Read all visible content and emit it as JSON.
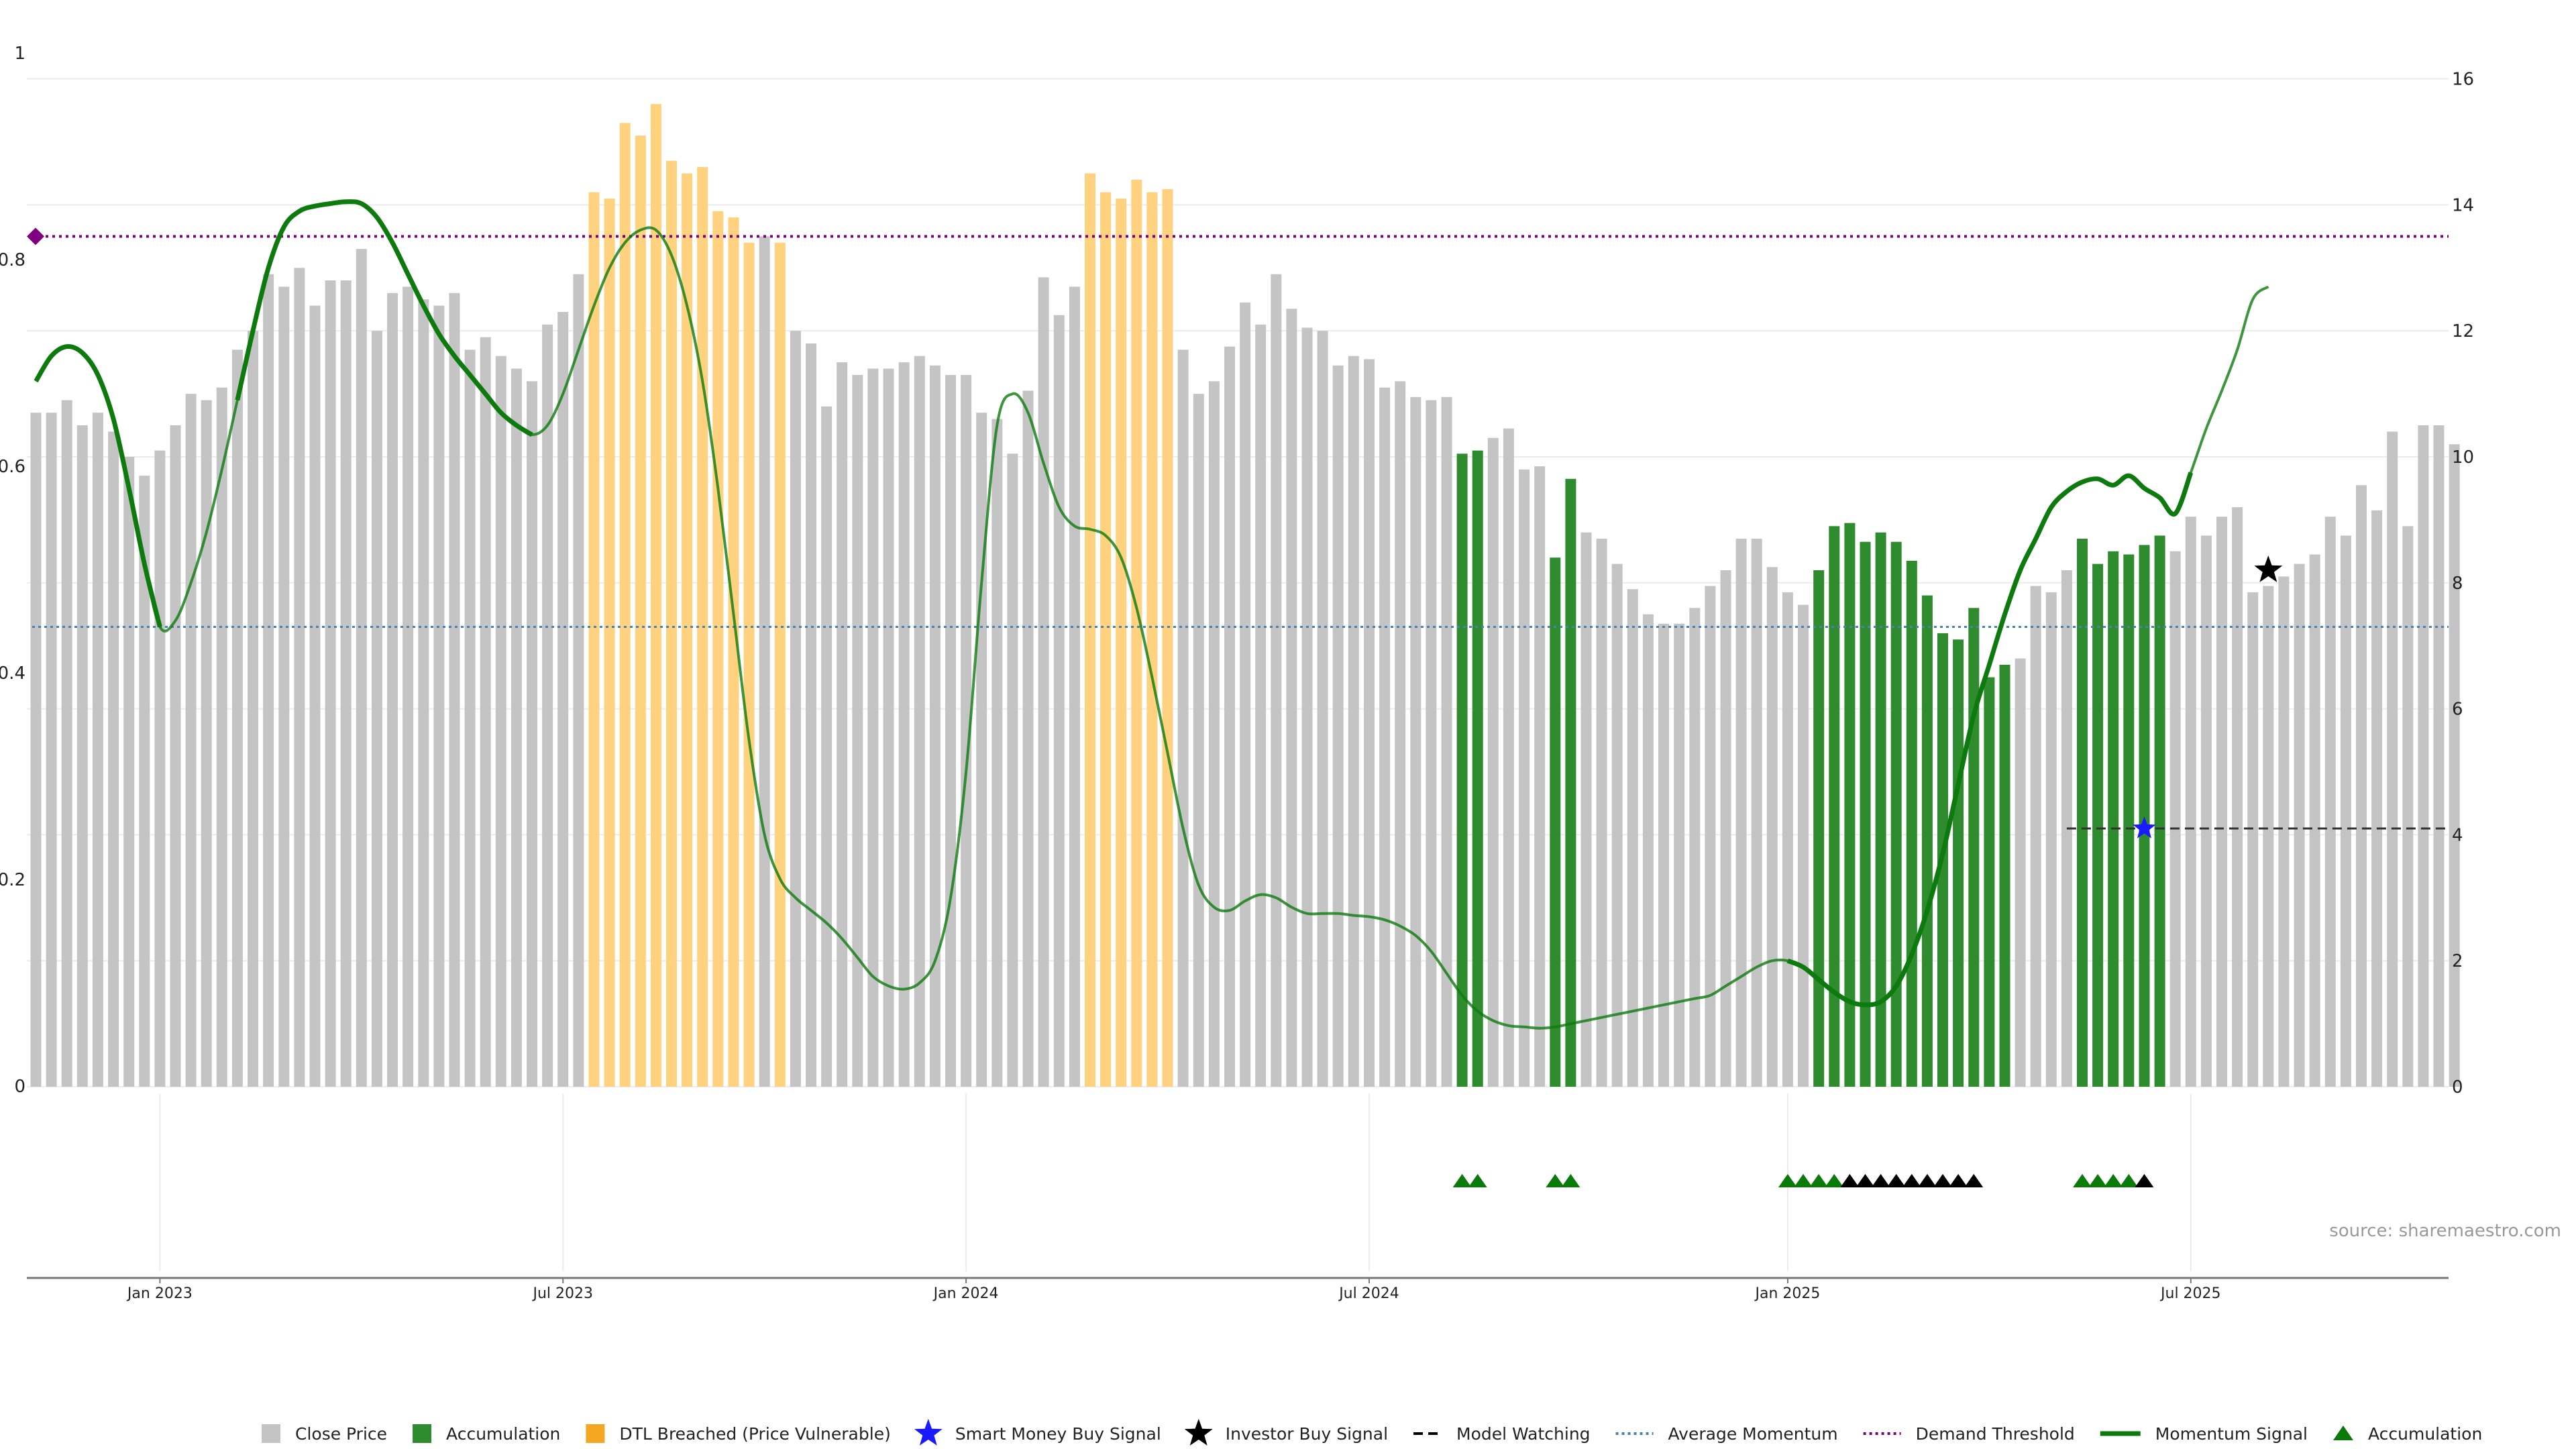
{
  "chart_data": {
    "type": "bar",
    "title": "",
    "source": "source: sharemaestro.com",
    "left_axis": {
      "ticks": [
        "0",
        "0.2",
        "0.4",
        "0.6",
        "0.8",
        "1"
      ],
      "range": [
        0,
        1
      ]
    },
    "right_axis": {
      "ticks": [
        "0",
        "2",
        "4",
        "6",
        "8",
        "10",
        "12",
        "14",
        "16"
      ],
      "range": [
        0,
        16.4
      ]
    },
    "x_ticks": [
      {
        "label": "Jan 2023",
        "index": 8
      },
      {
        "label": "Jul 2023",
        "index": 34
      },
      {
        "label": "Jan 2024",
        "index": 60
      },
      {
        "label": "Jul 2024",
        "index": 86
      },
      {
        "label": "Jan 2025",
        "index": 113
      },
      {
        "label": "Jul 2025",
        "index": 139
      }
    ],
    "close_price": [
      10.7,
      10.7,
      10.9,
      10.5,
      10.7,
      10.4,
      10.0,
      9.7,
      10.1,
      10.5,
      11.0,
      10.9,
      11.1,
      11.7,
      12.0,
      12.9,
      12.7,
      13.0,
      12.4,
      12.8,
      12.8,
      13.3,
      12.0,
      12.6,
      12.7,
      12.5,
      12.4,
      12.6,
      11.7,
      11.9,
      11.6,
      11.4,
      11.2,
      12.1,
      12.3,
      12.9,
      14.2,
      14.1,
      15.3,
      15.1,
      15.6,
      14.7,
      14.5,
      14.6,
      13.9,
      13.8,
      13.4,
      13.5,
      13.4,
      12.0,
      11.8,
      10.8,
      11.5,
      11.3,
      11.4,
      11.4,
      11.5,
      11.6,
      11.45,
      11.3,
      11.3,
      10.7,
      10.6,
      10.05,
      11.05,
      12.85,
      12.25,
      12.7,
      14.5,
      14.2,
      14.1,
      14.4,
      14.2,
      14.25,
      11.7,
      11.0,
      11.2,
      11.75,
      12.45,
      12.1,
      12.9,
      12.35,
      12.05,
      12.0,
      11.45,
      11.6,
      11.55,
      11.1,
      11.2,
      10.95,
      10.9,
      10.95,
      10.05,
      10.1,
      10.3,
      10.45,
      9.8,
      9.85,
      8.4,
      9.65,
      8.8,
      8.7,
      8.3,
      7.9,
      7.5,
      7.35,
      7.35,
      7.6,
      7.95,
      8.2,
      8.7,
      8.7,
      8.25,
      7.85,
      7.65,
      8.2,
      8.9,
      8.95,
      8.65,
      8.8,
      8.65,
      8.35,
      7.8,
      7.2,
      7.1,
      7.6,
      6.5,
      6.7,
      6.8,
      7.95,
      7.85,
      8.2,
      8.7,
      8.3,
      8.5,
      8.45,
      8.6,
      8.75,
      8.5,
      9.05,
      8.75,
      9.05,
      9.2,
      7.85,
      7.95,
      8.1,
      8.3,
      8.45,
      9.05,
      8.75,
      9.55,
      9.15,
      10.4,
      8.9,
      10.5,
      10.5,
      10.2
    ],
    "accumulation_bars": [
      92,
      93,
      98,
      99,
      115,
      116,
      117,
      118,
      119,
      120,
      121,
      122,
      123,
      124,
      125,
      126,
      127,
      132,
      133,
      134,
      135,
      136,
      137
    ],
    "dtl_breached_bars": [
      36,
      37,
      38,
      39,
      40,
      41,
      42,
      43,
      44,
      45,
      46,
      48,
      68,
      69,
      70,
      71,
      72,
      73
    ],
    "momentum_signal": [
      11.2,
      11.6,
      11.75,
      11.65,
      11.3,
      10.6,
      9.5,
      8.3,
      7.3,
      7.4,
      8.0,
      8.8,
      9.8,
      10.9,
      12.0,
      13.0,
      13.65,
      13.9,
      13.98,
      14.02,
      14.05,
      14.02,
      13.8,
      13.4,
      12.9,
      12.4,
      11.95,
      11.6,
      11.3,
      11.0,
      10.7,
      10.5,
      10.35,
      10.5,
      11.0,
      11.7,
      12.4,
      13.0,
      13.4,
      13.6,
      13.6,
      13.2,
      12.4,
      11.2,
      9.5,
      7.5,
      5.5,
      4.0,
      3.3,
      3.0,
      2.8,
      2.6,
      2.35,
      2.05,
      1.75,
      1.6,
      1.55,
      1.65,
      2.0,
      3.0,
      5.0,
      8.0,
      10.5,
      11.0,
      10.7,
      9.9,
      9.2,
      8.9,
      8.85,
      8.75,
      8.4,
      7.6,
      6.5,
      5.3,
      4.1,
      3.2,
      2.85,
      2.8,
      2.95,
      3.05,
      3.0,
      2.85,
      2.75,
      2.75,
      2.75,
      2.72,
      2.7,
      2.65,
      2.55,
      2.4,
      2.15,
      1.8,
      1.45,
      1.2,
      1.05,
      0.97,
      0.95,
      0.93,
      0.95,
      1.0,
      1.05,
      1.1,
      1.15,
      1.2,
      1.25,
      1.3,
      1.35,
      1.4,
      1.45,
      1.6,
      1.75,
      1.9,
      2.0,
      2.0,
      1.9,
      1.7,
      1.5,
      1.35,
      1.3,
      1.35,
      1.6,
      2.1,
      2.8,
      3.7,
      4.8,
      5.9,
      6.7,
      7.5,
      8.2,
      8.7,
      9.2,
      9.45,
      9.6,
      9.65,
      9.55,
      9.7,
      9.5,
      9.35,
      9.1,
      9.75,
      10.45,
      11.05,
      11.7,
      12.5,
      12.7
    ],
    "momentum_signal_bold_ranges": [
      [
        0,
        8
      ],
      [
        13,
        32
      ],
      [
        113,
        139
      ]
    ],
    "average_momentum": 7.3,
    "demand_threshold": 13.5,
    "model_watching": {
      "start_index": 131,
      "value": 4.1
    },
    "smart_money_buy_signal": {
      "index": 136,
      "value": 4.1
    },
    "investor_buy_signal": {
      "index": 144,
      "value": 8.2
    },
    "accumulation_markers": [
      {
        "index": 92,
        "color": "#0a7a0a"
      },
      {
        "index": 93,
        "color": "#0a7a0a"
      },
      {
        "index": 98,
        "color": "#0a7a0a"
      },
      {
        "index": 99,
        "color": "#0a7a0a"
      },
      {
        "index": 113,
        "color": "#0a7a0a"
      },
      {
        "index": 114,
        "color": "#0a7a0a"
      },
      {
        "index": 115,
        "color": "#0a7a0a"
      },
      {
        "index": 116,
        "color": "#0a7a0a"
      },
      {
        "index": 117,
        "color": "#000000"
      },
      {
        "index": 118,
        "color": "#000000"
      },
      {
        "index": 119,
        "color": "#000000"
      },
      {
        "index": 120,
        "color": "#000000"
      },
      {
        "index": 121,
        "color": "#000000"
      },
      {
        "index": 122,
        "color": "#000000"
      },
      {
        "index": 123,
        "color": "#000000"
      },
      {
        "index": 124,
        "color": "#000000"
      },
      {
        "index": 125,
        "color": "#000000"
      },
      {
        "index": 132,
        "color": "#0a7a0a"
      },
      {
        "index": 133,
        "color": "#0a7a0a"
      },
      {
        "index": 134,
        "color": "#0a7a0a"
      },
      {
        "index": 135,
        "color": "#0a7a0a"
      },
      {
        "index": 136,
        "color": "#000000"
      }
    ],
    "colors": {
      "close_price": "#c4c4c4",
      "accumulation": "#2e8b2e",
      "dtl_breached": "#ffd27f",
      "momentum": "#0d7a0d",
      "average_momentum": "#4682b4",
      "demand_threshold": "#800080",
      "smart_money": "#1a1aff",
      "investor": "#000000",
      "model_watching": "#333333"
    },
    "legend": [
      {
        "key": "close_price",
        "label": "Close Price",
        "symbol": "square",
        "color": "#c4c4c4"
      },
      {
        "key": "accumulation",
        "label": "Accumulation",
        "symbol": "square",
        "color": "#2e8b2e"
      },
      {
        "key": "dtl_breached",
        "label": "DTL Breached (Price Vulnerable)",
        "symbol": "square",
        "color": "#f5a623"
      },
      {
        "key": "smart_money",
        "label": "Smart Money Buy Signal",
        "symbol": "star",
        "color": "#1a1aff"
      },
      {
        "key": "investor",
        "label": "Investor Buy Signal",
        "symbol": "star",
        "color": "#000000"
      },
      {
        "key": "model_watching",
        "label": "Model Watching",
        "symbol": "dash",
        "color": "#000000"
      },
      {
        "key": "average_momentum",
        "label": "Average Momentum",
        "symbol": "dot",
        "color": "#4682b4"
      },
      {
        "key": "demand_threshold",
        "label": "Demand Threshold",
        "symbol": "dotpurple",
        "color": "#800080"
      },
      {
        "key": "momentum_signal",
        "label": "Momentum Signal",
        "symbol": "line",
        "color": "#0d7a0d"
      },
      {
        "key": "accumulation_marker",
        "label": "Accumulation",
        "symbol": "triangle",
        "color": "#0a7a0a"
      }
    ]
  }
}
